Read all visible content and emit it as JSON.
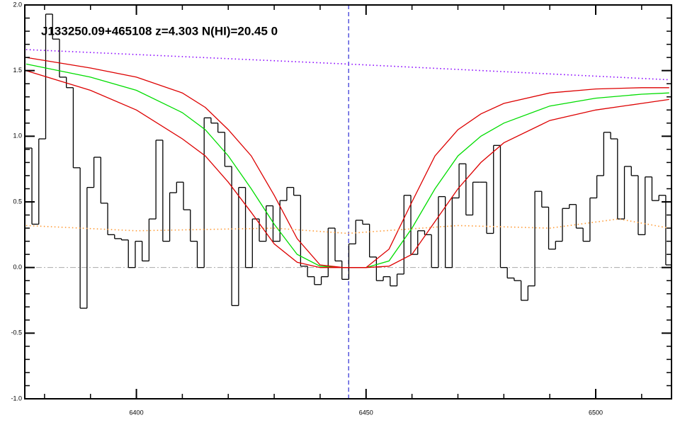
{
  "chart_data": {
    "type": "line",
    "title": "J133250.09+465108 z=4.303 N(HI)=20.45 0",
    "xlim": [
      6375.7,
      6516.5
    ],
    "ylim": [
      -1.0,
      2.0
    ],
    "xticks": [
      6400,
      6450,
      6500
    ],
    "yticks": [
      {
        "value": -1.0,
        "label": "-1.0"
      },
      -0.5,
      {
        "value": 0.0,
        "label": "0.0"
      },
      0.5,
      {
        "value": 1.0,
        "label": "1.0"
      },
      1.5,
      {
        "value": 2.0,
        "label": "2.0"
      }
    ],
    "xminor": 5,
    "yminor": 5,
    "zero_line": {
      "value": 0,
      "color": "#aaaaaa"
    },
    "vline": {
      "value": 6446.2,
      "color": "#0000cc"
    },
    "series": [
      {
        "style": "step",
        "color": "#000000",
        "x": [
          6376.5,
          6378,
          6379.5,
          6381,
          6382.5,
          6384,
          6385.5,
          6387,
          6388.5,
          6390,
          6391.5,
          6393,
          6394.5,
          6396,
          6397.5,
          6399,
          6400.5,
          6402,
          6403.5,
          6405,
          6406.5,
          6408,
          6409.5,
          6411,
          6412.5,
          6414,
          6415.5,
          6417,
          6418.5,
          6420,
          6421.5,
          6423,
          6424.5,
          6426,
          6427.5,
          6429,
          6430.5,
          6432,
          6433.5,
          6435,
          6436.5,
          6438,
          6439.5,
          6441,
          6442.5,
          6444,
          6445.5,
          6447,
          6448.5,
          6450,
          6451.5,
          6453,
          6454.5,
          6456,
          6457.5,
          6459,
          6460.5,
          6462,
          6463.5,
          6465,
          6466.5,
          6468,
          6469.5,
          6471,
          6472.5,
          6474,
          6475.5,
          6477,
          6478.5,
          6480,
          6481.5,
          6483,
          6484.5,
          6486,
          6487.5,
          6489,
          6490.5,
          6492,
          6493.5,
          6495,
          6496.5,
          6498,
          6499.5,
          6501,
          6502.5,
          6504,
          6505.5,
          6507,
          6508.5,
          6510,
          6511.5,
          6513,
          6514.5,
          6516
        ],
        "values": [
          0.91,
          0.33,
          0.98,
          1.93,
          1.74,
          1.45,
          1.37,
          0.76,
          -0.31,
          0.61,
          0.84,
          0.49,
          0.25,
          0.22,
          0.21,
          0.0,
          0.2,
          0.05,
          0.37,
          0.97,
          0.2,
          0.57,
          0.65,
          0.44,
          0.2,
          0.0,
          1.14,
          1.1,
          1.03,
          0.77,
          -0.29,
          0.61,
          0.0,
          0.37,
          0.2,
          0.47,
          0.2,
          0.51,
          0.61,
          0.55,
          0.01,
          -0.07,
          -0.13,
          -0.07,
          0.3,
          0.05,
          -0.09,
          0.18,
          0.36,
          0.33,
          0.08,
          -0.1,
          -0.07,
          -0.14,
          -0.05,
          0.55,
          0.1,
          0.28,
          0.25,
          0.0,
          0.54,
          0.0,
          0.53,
          0.79,
          0.4,
          0.65,
          0.65,
          0.26,
          0.93,
          0.0,
          -0.08,
          -0.1,
          -0.25,
          -0.14,
          0.58,
          0.46,
          0.14,
          0.2,
          0.45,
          0.48,
          0.3,
          0.2,
          0.53,
          0.7,
          1.03,
          0.98,
          0.37,
          0.77,
          0.7,
          0.25,
          0.69,
          0.51,
          0.55,
          0.02
        ]
      },
      {
        "style": "solid",
        "color": "#00dd00",
        "x": [
          6376,
          6390,
          6400,
          6410,
          6415,
          6420,
          6425,
          6430,
          6435,
          6440,
          6445,
          6450,
          6455,
          6460,
          6465,
          6470,
          6475,
          6480,
          6490,
          6500,
          6510,
          6516
        ],
        "values": [
          1.55,
          1.45,
          1.35,
          1.18,
          1.05,
          0.85,
          0.6,
          0.33,
          0.1,
          0.01,
          0,
          0,
          0.05,
          0.3,
          0.6,
          0.85,
          1.0,
          1.1,
          1.23,
          1.29,
          1.32,
          1.33
        ]
      },
      {
        "style": "solid",
        "color": "#dd0000",
        "x": [
          6376,
          6390,
          6400,
          6410,
          6415,
          6420,
          6425,
          6430,
          6435,
          6440,
          6445,
          6450,
          6455,
          6460,
          6465,
          6470,
          6475,
          6480,
          6490,
          6500,
          6510,
          6516
        ],
        "values": [
          1.6,
          1.52,
          1.45,
          1.33,
          1.22,
          1.05,
          0.85,
          0.55,
          0.22,
          0.02,
          0,
          0,
          0.14,
          0.5,
          0.85,
          1.05,
          1.17,
          1.25,
          1.33,
          1.36,
          1.37,
          1.37
        ]
      },
      {
        "style": "solid",
        "color": "#dd0000",
        "x": [
          6376,
          6390,
          6400,
          6410,
          6415,
          6420,
          6425,
          6430,
          6435,
          6440,
          6445,
          6450,
          6455,
          6460,
          6465,
          6470,
          6475,
          6480,
          6490,
          6500,
          6510,
          6516
        ],
        "values": [
          1.5,
          1.35,
          1.2,
          0.98,
          0.85,
          0.65,
          0.42,
          0.18,
          0.04,
          0,
          0,
          0,
          0.01,
          0.1,
          0.35,
          0.6,
          0.8,
          0.95,
          1.12,
          1.2,
          1.25,
          1.28
        ]
      },
      {
        "style": "dotted",
        "color": "#8800ff",
        "x": [
          6376,
          6446,
          6516
        ],
        "values": [
          1.66,
          1.55,
          1.43
        ]
      },
      {
        "style": "dotted",
        "color": "#ff9933",
        "x": [
          6376,
          6400,
          6430,
          6446,
          6470,
          6490,
          6505,
          6516
        ],
        "values": [
          0.32,
          0.28,
          0.3,
          0.26,
          0.32,
          0.3,
          0.37,
          0.3
        ]
      }
    ]
  }
}
